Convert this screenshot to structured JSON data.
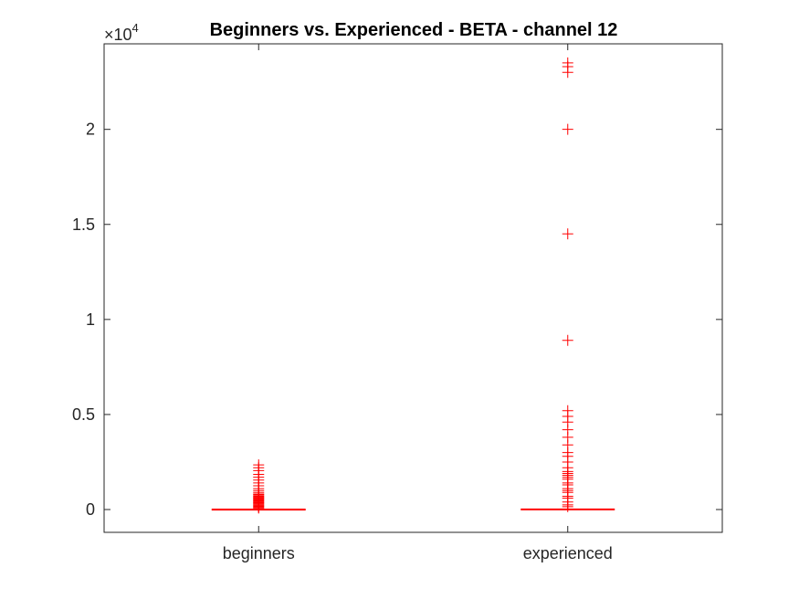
{
  "chart_data": {
    "type": "box",
    "title": "Beginners vs. Experienced - BETA - channel 12",
    "xlabel": "",
    "ylabel": "",
    "y_exponent_label": {
      "base": "×10",
      "exp": "4"
    },
    "ylim": [
      -1200,
      24500
    ],
    "yticks": [
      0,
      5000,
      10000,
      15000,
      20000
    ],
    "ytick_labels": [
      "0",
      "0.5",
      "1",
      "1.5",
      "2"
    ],
    "grid": false,
    "categories": [
      "beginners",
      "experienced"
    ],
    "boxes": [
      {
        "name": "beginners",
        "q1": 0,
        "median": 5,
        "q3": 20,
        "whisker_low": 0,
        "whisker_high": 50,
        "outliers": [
          80,
          110,
          150,
          190,
          230,
          280,
          320,
          360,
          400,
          440,
          480,
          520,
          560,
          600,
          640,
          680,
          720,
          780,
          820,
          900,
          1000,
          1100,
          1250,
          1400,
          1550,
          1700,
          1850,
          2050,
          2200,
          2350
        ]
      },
      {
        "name": "experienced",
        "q1": 0,
        "median": 10,
        "q3": 30,
        "whisker_low": 0,
        "whisker_high": 80,
        "outliers": [
          150,
          250,
          400,
          600,
          700,
          900,
          1000,
          1100,
          1300,
          1400,
          1600,
          1700,
          1800,
          1900,
          2000,
          2200,
          2500,
          2800,
          3000,
          3400,
          3800,
          4200,
          4600,
          4900,
          5200,
          8900,
          14500,
          20000,
          23000,
          23300,
          23500
        ]
      }
    ],
    "colors": {
      "outlier": "#ff0000",
      "box": "#ff0000",
      "median": "#ff0000",
      "axis": "#262626"
    }
  }
}
